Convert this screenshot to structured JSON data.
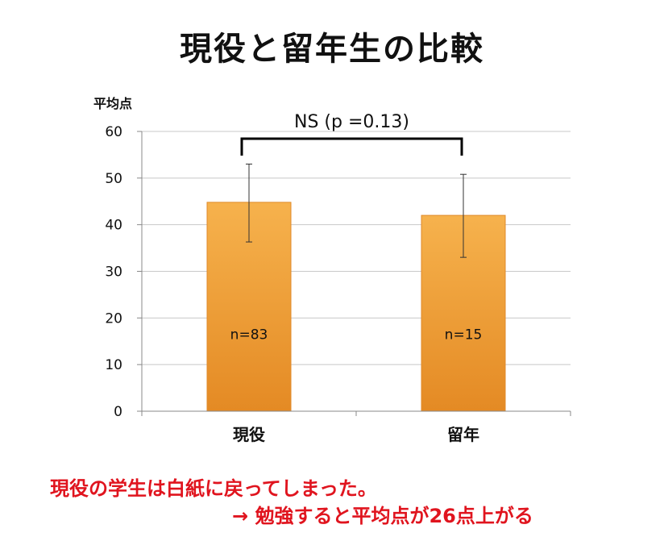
{
  "title": "現役と留年生の比較",
  "chart_data": {
    "type": "bar",
    "title": "現役と留年生の比較",
    "ylabel": "平均点",
    "xlabel": "",
    "categories": [
      "現役",
      "留年"
    ],
    "values": [
      44.8,
      42.0
    ],
    "error_high": [
      53.0,
      50.8
    ],
    "error_low": [
      36.3,
      33.0
    ],
    "bar_labels": [
      "n=83",
      "n=15"
    ],
    "ylim": [
      0,
      60
    ],
    "yticks": [
      "0",
      "10",
      "20",
      "30",
      "40",
      "50",
      "60"
    ],
    "grid": true,
    "bar_color": "#f2a43e",
    "significance": {
      "label": "NS (p =0.13)",
      "between": [
        "現役",
        "留年"
      ]
    }
  },
  "notes": {
    "line1": "現役の学生は白紙に戻ってしまった。",
    "line2": "→  勉強すると平均点が26点上がる"
  }
}
